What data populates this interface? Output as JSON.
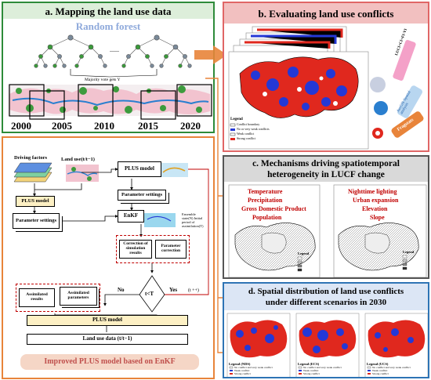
{
  "panel_a": {
    "title": "a. Mapping the land use data",
    "subtitle": "Random forest",
    "vote_label": "Majority vote gets Y",
    "years": [
      "2000",
      "2005",
      "2010",
      "2015",
      "2020"
    ]
  },
  "panel_b": {
    "title": "b. Evaluating land use conflicts",
    "legend_title": "Legend",
    "legend_items": [
      "Conflict boundary",
      "No or very weak conflicts",
      "Weak conflict",
      "Strong conflict"
    ],
    "tools": [
      "LUCI=CI+FI-VI",
      "ArcGIS Spatial analysis",
      "Fragstats"
    ]
  },
  "panel_c": {
    "title_line1": "c. Mechanisms driving spatiotemporal",
    "title_line2": "heterogeneity in LUCF change",
    "left_factors": [
      "Temperature",
      "Precipitation",
      "Gross Domestic Product",
      "Population"
    ],
    "right_factors": [
      "Nighttime lighting",
      "Urban expansion",
      "Elevation",
      "Slope"
    ],
    "legend_title": "Legend"
  },
  "panel_d": {
    "title_line1": "d. Spatial distribution of land use conflicts",
    "title_line2": "under different scenarios in 2030",
    "maps": [
      {
        "legend": "Legend (NDS)"
      },
      {
        "legend": "Legend (ECS)"
      },
      {
        "legend": "Legend (UCS)"
      }
    ],
    "legend_items": [
      "No conflict and very weak conflict",
      "Weak conflict",
      "Strong conflict"
    ]
  },
  "panel_e": {
    "driving_factors": "Driving factors",
    "land_use_prev": "Land use(t/t−1)",
    "plus_model_top": "PLUS model",
    "plus_model_left": "PLUS model",
    "param_settings_left": "Parameter settings",
    "param_settings_right": "Parameter settings",
    "enkf": "EnKF",
    "ensemble_label": "Ensemble state(N) Initial period of assimilation(T)",
    "correction_sim": "Correction of simulation results",
    "param_correction": "Parameter correction",
    "decision": "t<T",
    "no_label": "No",
    "yes_label": "Yes",
    "loop_label": "(t ++)",
    "assimilated_results": "Assimilated results",
    "assimilated_params": "Assimilated parameters",
    "plus_model_bottom": "PLUS model",
    "land_use_out": "Land use data (t/t−1)",
    "footer": "Improved PLUS model based on EnKF"
  },
  "colors": {
    "green_border": "#2e8b3a",
    "orange": "#e8843a",
    "pink_header": "#f2c0c0",
    "grey_header": "#d9d9d9",
    "blue_header": "#dce6f5",
    "conflict_red": "#e0281e",
    "conflict_blue": "#2438d6",
    "footer_bg": "#f5d6c6"
  }
}
